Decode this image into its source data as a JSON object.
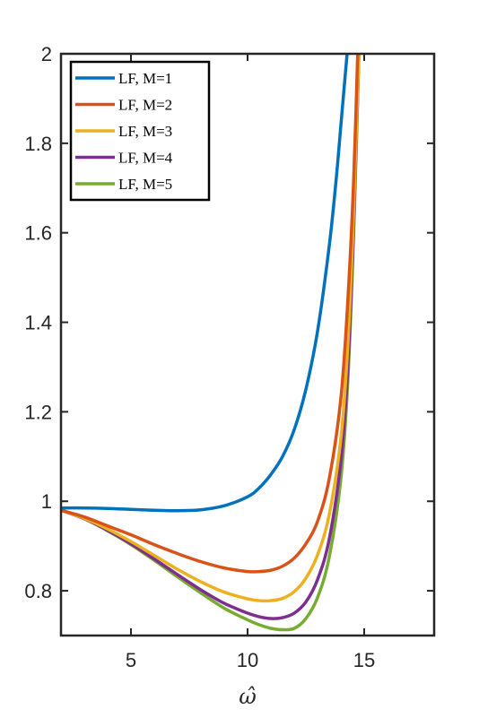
{
  "chart_data": {
    "type": "line",
    "title": "",
    "xlabel": "ω̂",
    "ylabel": "",
    "xlim": [
      2,
      18
    ],
    "ylim": [
      0.7,
      2
    ],
    "xticks": [
      5,
      10,
      15
    ],
    "xtick_labels": [
      "5",
      "10",
      "15"
    ],
    "yticks": [
      0.8,
      1.0,
      1.2,
      1.4,
      1.6,
      1.8,
      2.0
    ],
    "ytick_labels": [
      "0.8",
      "1",
      "1.2",
      "1.4",
      "1.6",
      "1.8",
      "2"
    ],
    "grid": false,
    "legend_position": "top-left",
    "series": [
      {
        "name": "LF, M=1",
        "color": "#0072BD",
        "x": [
          2,
          3,
          4,
          5,
          6,
          6.7,
          7,
          8,
          9,
          10,
          10.5,
          11,
          11.5,
          12,
          12.5,
          13,
          13.5,
          13.8,
          14,
          14.2,
          14.35,
          14.5
        ],
        "y": [
          0.985,
          0.985,
          0.984,
          0.982,
          0.98,
          0.979,
          0.979,
          0.981,
          0.99,
          1.01,
          1.03,
          1.06,
          1.1,
          1.16,
          1.25,
          1.38,
          1.57,
          1.72,
          1.84,
          1.96,
          2.05,
          2.15
        ]
      },
      {
        "name": "LF, M=2",
        "color": "#D95319",
        "x": [
          2,
          3,
          4,
          5,
          6,
          7,
          8,
          9,
          10,
          10.5,
          11,
          11.5,
          12,
          12.5,
          13,
          13.5,
          14,
          14.3,
          14.55,
          14.75
        ],
        "y": [
          0.98,
          0.965,
          0.945,
          0.925,
          0.903,
          0.883,
          0.865,
          0.851,
          0.843,
          0.843,
          0.846,
          0.855,
          0.873,
          0.905,
          0.955,
          1.05,
          1.23,
          1.45,
          1.72,
          2.05
        ]
      },
      {
        "name": "LF, M=3",
        "color": "#EDB120",
        "x": [
          2,
          3,
          4,
          5,
          6,
          7,
          8,
          9,
          10,
          10.5,
          11,
          11.5,
          12,
          12.5,
          13,
          13.5,
          14,
          14.3,
          14.55,
          14.8
        ],
        "y": [
          0.98,
          0.962,
          0.938,
          0.91,
          0.879,
          0.848,
          0.82,
          0.797,
          0.782,
          0.778,
          0.778,
          0.783,
          0.798,
          0.828,
          0.88,
          0.97,
          1.14,
          1.35,
          1.65,
          2.05
        ]
      },
      {
        "name": "LF, M=4",
        "color": "#7E2F8E",
        "x": [
          2,
          3,
          4,
          5,
          6,
          7,
          8,
          9,
          10,
          10.5,
          11,
          11.5,
          12,
          12.5,
          13,
          13.5,
          14,
          14.3,
          14.55,
          14.8
        ],
        "y": [
          0.98,
          0.961,
          0.935,
          0.905,
          0.871,
          0.836,
          0.802,
          0.772,
          0.75,
          0.742,
          0.738,
          0.74,
          0.75,
          0.775,
          0.825,
          0.915,
          1.09,
          1.3,
          1.62,
          2.05
        ]
      },
      {
        "name": "LF, M=5",
        "color": "#77AC30",
        "x": [
          2,
          3,
          4,
          5,
          6,
          7,
          8,
          9,
          10,
          10.5,
          11,
          11.5,
          12,
          12.5,
          13,
          13.5,
          14,
          14.3,
          14.55,
          14.8
        ],
        "y": [
          0.98,
          0.961,
          0.934,
          0.903,
          0.868,
          0.831,
          0.795,
          0.761,
          0.735,
          0.724,
          0.716,
          0.713,
          0.716,
          0.738,
          0.785,
          0.875,
          1.05,
          1.27,
          1.6,
          2.05
        ]
      }
    ]
  }
}
